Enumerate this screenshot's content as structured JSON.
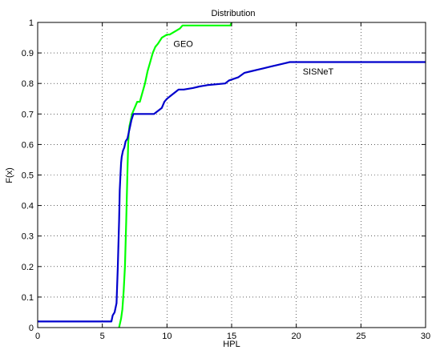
{
  "chart_data": {
    "type": "line",
    "title": "Distribution",
    "xlabel": "HPL",
    "ylabel": "F(x)",
    "xlim": [
      0,
      30
    ],
    "ylim": [
      0,
      1
    ],
    "xticks": [
      0,
      5,
      10,
      15,
      20,
      25,
      30
    ],
    "yticks": [
      0,
      0.1,
      0.2,
      0.3,
      0.4,
      0.5,
      0.6,
      0.7,
      0.8,
      0.9,
      1
    ],
    "grid": true,
    "series": [
      {
        "name": "GEO",
        "color": "#00ff00",
        "x": [
          6.3,
          6.35,
          6.45,
          6.55,
          6.65,
          6.75,
          6.85,
          6.95,
          7.0,
          7.05,
          7.1,
          7.2,
          7.3,
          7.5,
          7.7,
          7.9,
          8.1,
          8.3,
          8.5,
          8.7,
          8.9,
          9.1,
          9.3,
          9.6,
          10.0,
          10.2,
          10.6,
          11.0,
          11.2,
          11.5,
          12.0,
          13.0,
          14.0,
          14.9,
          15.0
        ],
        "y": [
          0.0,
          0.01,
          0.03,
          0.06,
          0.12,
          0.2,
          0.35,
          0.52,
          0.6,
          0.64,
          0.66,
          0.68,
          0.7,
          0.72,
          0.74,
          0.74,
          0.77,
          0.8,
          0.84,
          0.87,
          0.9,
          0.92,
          0.93,
          0.95,
          0.96,
          0.96,
          0.97,
          0.98,
          0.99,
          0.99,
          0.99,
          0.99,
          0.99,
          0.99,
          1.0
        ]
      },
      {
        "name": "SISNeT",
        "color": "#0000cc",
        "x": [
          0,
          5.7,
          5.8,
          5.95,
          6.1,
          6.2,
          6.3,
          6.35,
          6.4,
          6.45,
          6.5,
          6.6,
          6.7,
          6.8,
          6.95,
          7.05,
          7.15,
          7.25,
          7.4,
          7.6,
          8.0,
          9.0,
          9.6,
          9.8,
          10.0,
          10.3,
          10.6,
          10.9,
          11.3,
          12.0,
          12.5,
          13.2,
          14.5,
          14.8,
          15.5,
          16.0,
          16.5,
          17.0,
          17.5,
          18.0,
          18.5,
          19.0,
          19.5,
          20.0,
          22.0,
          25.0,
          28.0,
          30.0
        ],
        "y": [
          0.02,
          0.02,
          0.04,
          0.05,
          0.08,
          0.2,
          0.35,
          0.45,
          0.5,
          0.54,
          0.56,
          0.58,
          0.59,
          0.61,
          0.62,
          0.64,
          0.66,
          0.68,
          0.7,
          0.7,
          0.7,
          0.7,
          0.72,
          0.74,
          0.75,
          0.76,
          0.77,
          0.78,
          0.78,
          0.785,
          0.79,
          0.795,
          0.8,
          0.81,
          0.82,
          0.835,
          0.84,
          0.845,
          0.85,
          0.855,
          0.86,
          0.865,
          0.87,
          0.87,
          0.87,
          0.87,
          0.87,
          0.87
        ]
      }
    ],
    "annotations": [
      {
        "text": "GEO",
        "x": 10.5,
        "y": 0.93
      },
      {
        "text": "SISNeT",
        "x": 20.5,
        "y": 0.84
      }
    ]
  }
}
